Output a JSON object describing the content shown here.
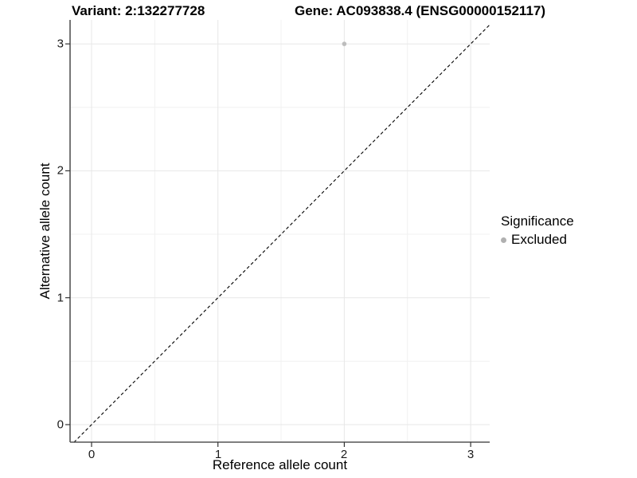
{
  "header": {
    "variant_title": "Variant: 2:132277728",
    "gene_title": "Gene: AC093838.4 (ENSG00000152117)"
  },
  "chart_data": {
    "type": "scatter",
    "title_left": "Variant: 2:132277728",
    "title_right": "Gene: AC093838.4 (ENSG00000152117)",
    "xlabel": "Reference allele count",
    "ylabel": "Alternative allele count",
    "x_ticks": [
      0,
      1,
      2,
      3
    ],
    "y_ticks": [
      0,
      1,
      2,
      3
    ],
    "x_minor_ticks": [
      0.5,
      1.5,
      2.5
    ],
    "y_minor_ticks": [
      0.5,
      1.5,
      2.5
    ],
    "xlim": [
      -0.17,
      3.15
    ],
    "ylim": [
      -0.14,
      3.19
    ],
    "grid": true,
    "identity_line": {
      "style": "dashed",
      "color": "#000000",
      "from": -0.14,
      "to": 3.15
    },
    "series": [
      {
        "name": "Excluded",
        "color": "#bdbdbd",
        "points": [
          {
            "x": 2,
            "y": 3
          }
        ]
      }
    ],
    "legend": {
      "title": "Significance",
      "position": "right",
      "items": [
        {
          "label": "Excluded",
          "color": "#b0b0b0"
        }
      ]
    },
    "colors": {
      "grid_major": "#e7e7e7",
      "grid_minor": "#f1f1f1",
      "axis_line": "#555555",
      "tick_mark": "#333333",
      "point": "#bdbdbd",
      "identity_line": "#000000"
    }
  }
}
